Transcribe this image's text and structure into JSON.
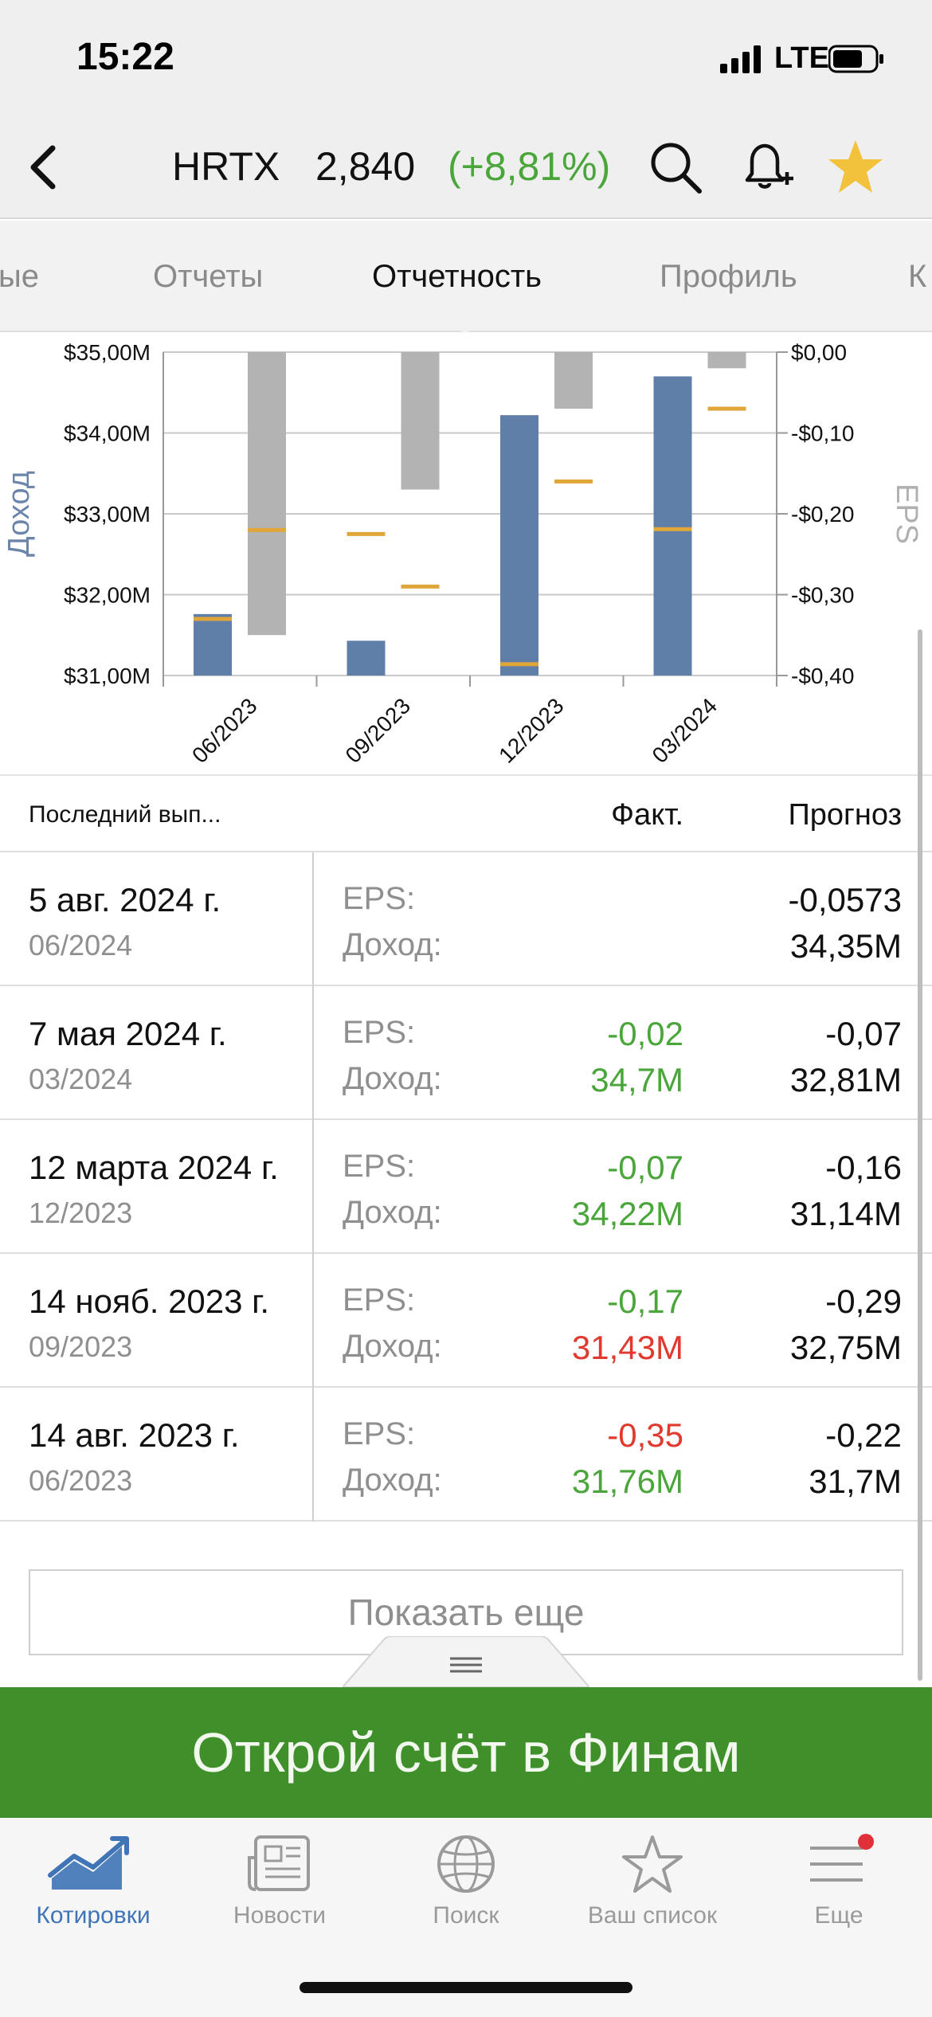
{
  "status_bar": {
    "time": "15:22",
    "network": "LTE"
  },
  "header": {
    "ticker": "HRTX",
    "price": "2,840",
    "change": "(+8,81%)",
    "change_color": "#4aa63a",
    "icons": [
      "back-chevron-icon",
      "search-icon",
      "bell-plus-icon",
      "star-icon"
    ],
    "star_color": "#f2c23d"
  },
  "tabs": [
    {
      "label": "ые",
      "active": false
    },
    {
      "label": "Отчеты",
      "active": false
    },
    {
      "label": "Отчетность",
      "active": true
    },
    {
      "label": "Профиль",
      "active": false
    },
    {
      "label": "К",
      "active": false
    }
  ],
  "chart_data": {
    "type": "bar",
    "categories": [
      "06/2023",
      "09/2023",
      "12/2023",
      "03/2024"
    ],
    "left_axis": {
      "label": "Доход",
      "ticks": [
        "$35,00M",
        "$34,00M",
        "$33,00M",
        "$32,00M",
        "$31,00M"
      ],
      "range": [
        31.0,
        35.0
      ]
    },
    "right_axis": {
      "label": "EPS",
      "ticks": [
        "$0,00",
        "-$0,10",
        "-$0,20",
        "-$0,30",
        "-$0,40"
      ],
      "range": [
        -0.4,
        0.0
      ]
    },
    "series": [
      {
        "values": [
          31.76,
          31.43,
          34.22,
          34.7
        ],
        "color": "#5f7fa8",
        "axis": "left"
      },
      {
        "values": [
          31.7,
          32.75,
          31.14,
          32.81
        ],
        "color": "#e0a63a",
        "axis": "left"
      },
      {
        "values": [
          -0.35,
          -0.17,
          -0.07,
          -0.02
        ],
        "color": "#b3b3b3",
        "axis": "right"
      },
      {
        "values": [
          -0.22,
          -0.29,
          -0.16,
          -0.07
        ],
        "color": "#e0a63a",
        "axis": "right"
      }
    ],
    "grid": true
  },
  "table": {
    "header": {
      "last": "Последний вып...",
      "fact": "Факт.",
      "forecast": "Прогноз"
    },
    "eps_label": "EPS:",
    "revenue_label": "Доход:",
    "rows": [
      {
        "date": "5 авг. 2024 г.",
        "period": "06/2024",
        "eps_fact": "",
        "eps_fact_color": "#4aa63a",
        "rev_fact": "",
        "rev_fact_color": "#4aa63a",
        "eps_forecast": "-0,0573",
        "rev_forecast": "34,35M"
      },
      {
        "date": "7 мая 2024 г.",
        "period": "03/2024",
        "eps_fact": "-0,02",
        "eps_fact_color": "#4aa63a",
        "rev_fact": "34,7M",
        "rev_fact_color": "#4aa63a",
        "eps_forecast": "-0,07",
        "rev_forecast": "32,81M"
      },
      {
        "date": "12 марта 2024 г.",
        "period": "12/2023",
        "eps_fact": "-0,07",
        "eps_fact_color": "#4aa63a",
        "rev_fact": "34,22M",
        "rev_fact_color": "#4aa63a",
        "eps_forecast": "-0,16",
        "rev_forecast": "31,14M"
      },
      {
        "date": "14 нояб. 2023 г.",
        "period": "09/2023",
        "eps_fact": "-0,17",
        "eps_fact_color": "#4aa63a",
        "rev_fact": "31,43M",
        "rev_fact_color": "#e03a2e",
        "eps_forecast": "-0,29",
        "rev_forecast": "32,75M"
      },
      {
        "date": "14 авг. 2023 г.",
        "period": "06/2023",
        "eps_fact": "-0,35",
        "eps_fact_color": "#e03a2e",
        "rev_fact": "31,76M",
        "rev_fact_color": "#4aa63a",
        "eps_forecast": "-0,22",
        "rev_forecast": "31,7M"
      }
    ],
    "show_more": "Показать еще"
  },
  "promo": {
    "text": "Открой счёт в Финам",
    "color": "#3f8f2a"
  },
  "bottom_tabs": [
    {
      "label": "Котировки",
      "icon": "chart-trend-icon",
      "active": true
    },
    {
      "label": "Новости",
      "icon": "newspaper-icon",
      "active": false
    },
    {
      "label": "Поиск",
      "icon": "globe-icon",
      "active": false
    },
    {
      "label": "Ваш список",
      "icon": "star-outline-icon",
      "active": false
    },
    {
      "label": "Еще",
      "icon": "menu-icon",
      "active": false
    }
  ],
  "colors": {
    "accent_blue": "#3f74b6",
    "badge_red": "#e0303a"
  }
}
